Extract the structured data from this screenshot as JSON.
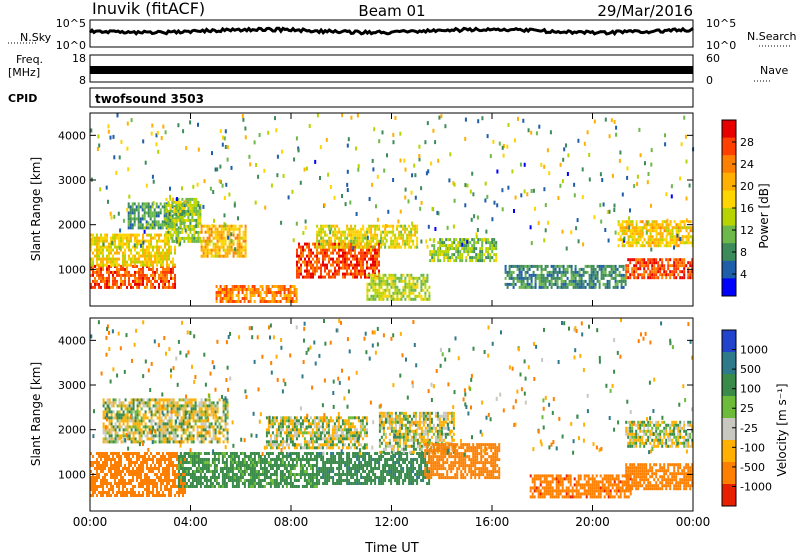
{
  "header": {
    "station": "Inuvik (fitACF)",
    "beam": "Beam 01",
    "date": "29/Mar/2016"
  },
  "top_panels": {
    "nsky_label": "N.Sky",
    "nsky_ticks": [
      "10^5",
      "10^0"
    ],
    "nsearch_label": "N.Search",
    "nsearch_ticks": [
      "10^5",
      "10^0"
    ],
    "freq_label_1": "Freq.",
    "freq_label_2": "[MHz]",
    "freq_ticks": [
      "18",
      "8"
    ],
    "nave_label": "Nave",
    "nave_ticks": [
      "60",
      "0"
    ],
    "cpid_label": "CPID",
    "cpid_value": "twofsound 3503"
  },
  "colorbars": {
    "power": {
      "label": "Power [dB]",
      "ticks": [
        "28",
        "24",
        "20",
        "16",
        "12",
        "8",
        "4"
      ],
      "colors": [
        "#e60000",
        "#ff4000",
        "#ff8000",
        "#ffb000",
        "#ffd500",
        "#b8d400",
        "#6cb84a",
        "#3d8a5a",
        "#1f5ea8",
        "#0000ff"
      ]
    },
    "velocity": {
      "label": "Velocity [m s⁻¹]",
      "ticks": [
        "1000",
        "500",
        "100",
        "25",
        "-25",
        "-100",
        "-500",
        "-1000"
      ],
      "colors": [
        "#2244cc",
        "#2e7a8a",
        "#3a8a4a",
        "#6cbb3a",
        "#c8c8c0",
        "#ffb000",
        "#ff8000",
        "#e62000"
      ]
    }
  },
  "chart_data": [
    {
      "type": "heatmap",
      "title": "Power",
      "ylabel": "Slant Range [km]",
      "y_ticks": [
        "4000",
        "3000",
        "2000",
        "1000"
      ],
      "ylim": [
        180,
        4500
      ],
      "x_ticks": [
        "00:00",
        "04:00",
        "08:00",
        "12:00",
        "16:00",
        "20:00",
        "00:00"
      ],
      "xlim": [
        0,
        24
      ],
      "bands": [
        {
          "x0": 0,
          "x1": 3.4,
          "y0": 600,
          "y1": 1100,
          "v": 26
        },
        {
          "x0": 0,
          "x1": 3.4,
          "y0": 1100,
          "y1": 1800,
          "v": 18
        },
        {
          "x0": 1.5,
          "x1": 3.8,
          "y0": 1900,
          "y1": 2500,
          "v": 10
        },
        {
          "x0": 3.0,
          "x1": 4.4,
          "y0": 1600,
          "y1": 2600,
          "v": 14
        },
        {
          "x0": 4.4,
          "x1": 6.2,
          "y0": 1300,
          "y1": 2000,
          "v": 20
        },
        {
          "x0": 5.0,
          "x1": 8.2,
          "y0": 250,
          "y1": 650,
          "v": 24
        },
        {
          "x0": 8.2,
          "x1": 11.5,
          "y0": 850,
          "y1": 1600,
          "v": 27
        },
        {
          "x0": 9.0,
          "x1": 13.0,
          "y0": 1500,
          "y1": 2000,
          "v": 17
        },
        {
          "x0": 11.0,
          "x1": 13.5,
          "y0": 300,
          "y1": 900,
          "v": 15
        },
        {
          "x0": 13.5,
          "x1": 16.2,
          "y0": 1200,
          "y1": 1700,
          "v": 13
        },
        {
          "x0": 16.5,
          "x1": 21.3,
          "y0": 600,
          "y1": 1100,
          "v": 9
        },
        {
          "x0": 21.3,
          "x1": 24,
          "y0": 800,
          "y1": 1250,
          "v": 27
        },
        {
          "x0": 21.0,
          "x1": 24,
          "y0": 1500,
          "y1": 2100,
          "v": 19
        }
      ]
    },
    {
      "type": "heatmap",
      "title": "Velocity",
      "ylabel": "Slant Range [km]",
      "y_ticks": [
        "4000",
        "3000",
        "2000",
        "1000"
      ],
      "ylim": [
        180,
        4500
      ],
      "x_ticks": [
        "00:00",
        "04:00",
        "08:00",
        "12:00",
        "16:00",
        "20:00",
        "00:00"
      ],
      "xlabel": "Time UT",
      "xlim": [
        0,
        24
      ],
      "bands": [
        {
          "x0": 0,
          "x1": 3.8,
          "y0": 550,
          "y1": 1500,
          "v": -400
        },
        {
          "x0": 0.5,
          "x1": 5.5,
          "y0": 1700,
          "y1": 2700,
          "v": 0
        },
        {
          "x0": 3.5,
          "x1": 9.0,
          "y0": 700,
          "y1": 1500,
          "v": 150
        },
        {
          "x0": 7.0,
          "x1": 11.0,
          "y0": 1600,
          "y1": 2300,
          "v": 0
        },
        {
          "x0": 9.0,
          "x1": 13.5,
          "y0": 800,
          "y1": 1500,
          "v": 200
        },
        {
          "x0": 11.5,
          "x1": 14.5,
          "y0": 1500,
          "y1": 2400,
          "v": 0
        },
        {
          "x0": 13.3,
          "x1": 16.3,
          "y0": 900,
          "y1": 1700,
          "v": -400
        },
        {
          "x0": 17.5,
          "x1": 21.5,
          "y0": 500,
          "y1": 1000,
          "v": -600
        },
        {
          "x0": 21.3,
          "x1": 24,
          "y0": 700,
          "y1": 1250,
          "v": -500
        },
        {
          "x0": 21.3,
          "x1": 24,
          "y0": 1600,
          "y1": 2200,
          "v": 0
        }
      ]
    }
  ]
}
